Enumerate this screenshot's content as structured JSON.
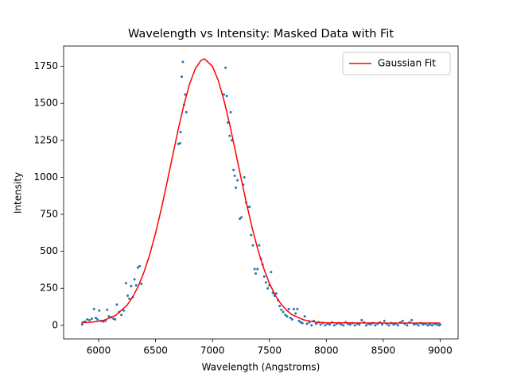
{
  "chart_data": {
    "type": "scatter",
    "title": "Wavelength vs Intensity: Masked Data with Fit",
    "x_label": "Wavelength (Angstroms)",
    "y_label": "Intensity",
    "xlim": [
      5692.5,
      9157.5
    ],
    "ylim": [
      -92,
      1887
    ],
    "xticks": [
      6000,
      6500,
      7000,
      7500,
      8000,
      8500,
      9000
    ],
    "yticks": [
      0,
      250,
      500,
      750,
      1000,
      1250,
      1500,
      1750
    ],
    "legend": "upper right",
    "series": [
      {
        "type": "scatter",
        "color": "#1f77b4",
        "x": [
          5855,
          5860,
          5880,
          5900,
          5920,
          5940,
          5960,
          5975,
          5990,
          6005,
          6020,
          6040,
          6060,
          6075,
          6090,
          6110,
          6130,
          6145,
          6160,
          6180,
          6200,
          6220,
          6240,
          6255,
          6270,
          6285,
          6300,
          6315,
          6330,
          6345,
          6360,
          6375,
          6700,
          6715,
          6720,
          6730,
          6740,
          6750,
          6760,
          6770,
          7100,
          7115,
          7125,
          7135,
          7150,
          7160,
          7170,
          7185,
          7195,
          7205,
          7220,
          7240,
          7255,
          7270,
          7280,
          7295,
          7310,
          7325,
          7340,
          7355,
          7370,
          7380,
          7395,
          7410,
          7425,
          7440,
          7455,
          7470,
          7485,
          7500,
          7515,
          7530,
          7545,
          7560,
          7575,
          7590,
          7605,
          7620,
          7640,
          7655,
          7670,
          7685,
          7700,
          7715,
          7730,
          7745,
          7760,
          7775,
          7790,
          7810,
          7830,
          7850,
          7870,
          7890,
          7910,
          7930,
          7950,
          7970,
          7990,
          8010,
          8030,
          8050,
          8070,
          8090,
          8110,
          8130,
          8150,
          8170,
          8190,
          8210,
          8230,
          8250,
          8270,
          8290,
          8310,
          8330,
          8350,
          8370,
          8390,
          8410,
          8430,
          8450,
          8470,
          8490,
          8510,
          8530,
          8550,
          8570,
          8590,
          8610,
          8630,
          8650,
          8670,
          8690,
          8710,
          8730,
          8750,
          8770,
          8790,
          8810,
          8830,
          8850,
          8870,
          8890,
          8910,
          8930,
          8950,
          8970,
          8990,
          9000
        ],
        "values": [
          5,
          20,
          25,
          40,
          35,
          45,
          110,
          50,
          40,
          100,
          30,
          25,
          30,
          105,
          60,
          55,
          45,
          40,
          140,
          90,
          70,
          100,
          285,
          200,
          180,
          265,
          190,
          310,
          270,
          390,
          400,
          280,
          1225,
          1230,
          1305,
          1680,
          1780,
          1490,
          1560,
          1440,
          1560,
          1740,
          1550,
          1370,
          1280,
          1440,
          1250,
          1050,
          1010,
          930,
          980,
          720,
          730,
          950,
          1000,
          830,
          800,
          800,
          610,
          540,
          380,
          350,
          380,
          540,
          450,
          410,
          330,
          290,
          250,
          270,
          360,
          220,
          200,
          215,
          170,
          130,
          105,
          90,
          70,
          60,
          110,
          50,
          40,
          110,
          80,
          110,
          30,
          20,
          15,
          60,
          10,
          20,
          0,
          30,
          10,
          20,
          5,
          15,
          0,
          10,
          5,
          20,
          0,
          10,
          15,
          5,
          0,
          20,
          10,
          5,
          15,
          0,
          10,
          5,
          35,
          20,
          0,
          10,
          5,
          15,
          0,
          10,
          20,
          5,
          30,
          10,
          0,
          15,
          5,
          10,
          0,
          20,
          30,
          10,
          0,
          20,
          35,
          5,
          10,
          0,
          15,
          5,
          10,
          0,
          5,
          0,
          10,
          5,
          0,
          5
        ]
      },
      {
        "type": "line",
        "name": "Gaussian Fit",
        "color": "#ff0000",
        "x": [
          5850,
          5950,
          6050,
          6150,
          6250,
          6300,
          6350,
          6400,
          6450,
          6500,
          6550,
          6600,
          6650,
          6700,
          6750,
          6800,
          6850,
          6900,
          6930,
          7000,
          7050,
          7100,
          7150,
          7200,
          7250,
          7300,
          7350,
          7400,
          7450,
          7500,
          7550,
          7600,
          7650,
          7700,
          7800,
          7900,
          8000,
          8500,
          9000
        ],
        "values": [
          17,
          22,
          35,
          67,
          136,
          192,
          267,
          363,
          481,
          623,
          785,
          962,
          1146,
          1327,
          1493,
          1633,
          1735,
          1791,
          1800,
          1750,
          1656,
          1523,
          1362,
          1182,
          998,
          819,
          654,
          508,
          385,
          284,
          205,
          146,
          102,
          71,
          37,
          22,
          17,
          15,
          15
        ]
      }
    ]
  }
}
